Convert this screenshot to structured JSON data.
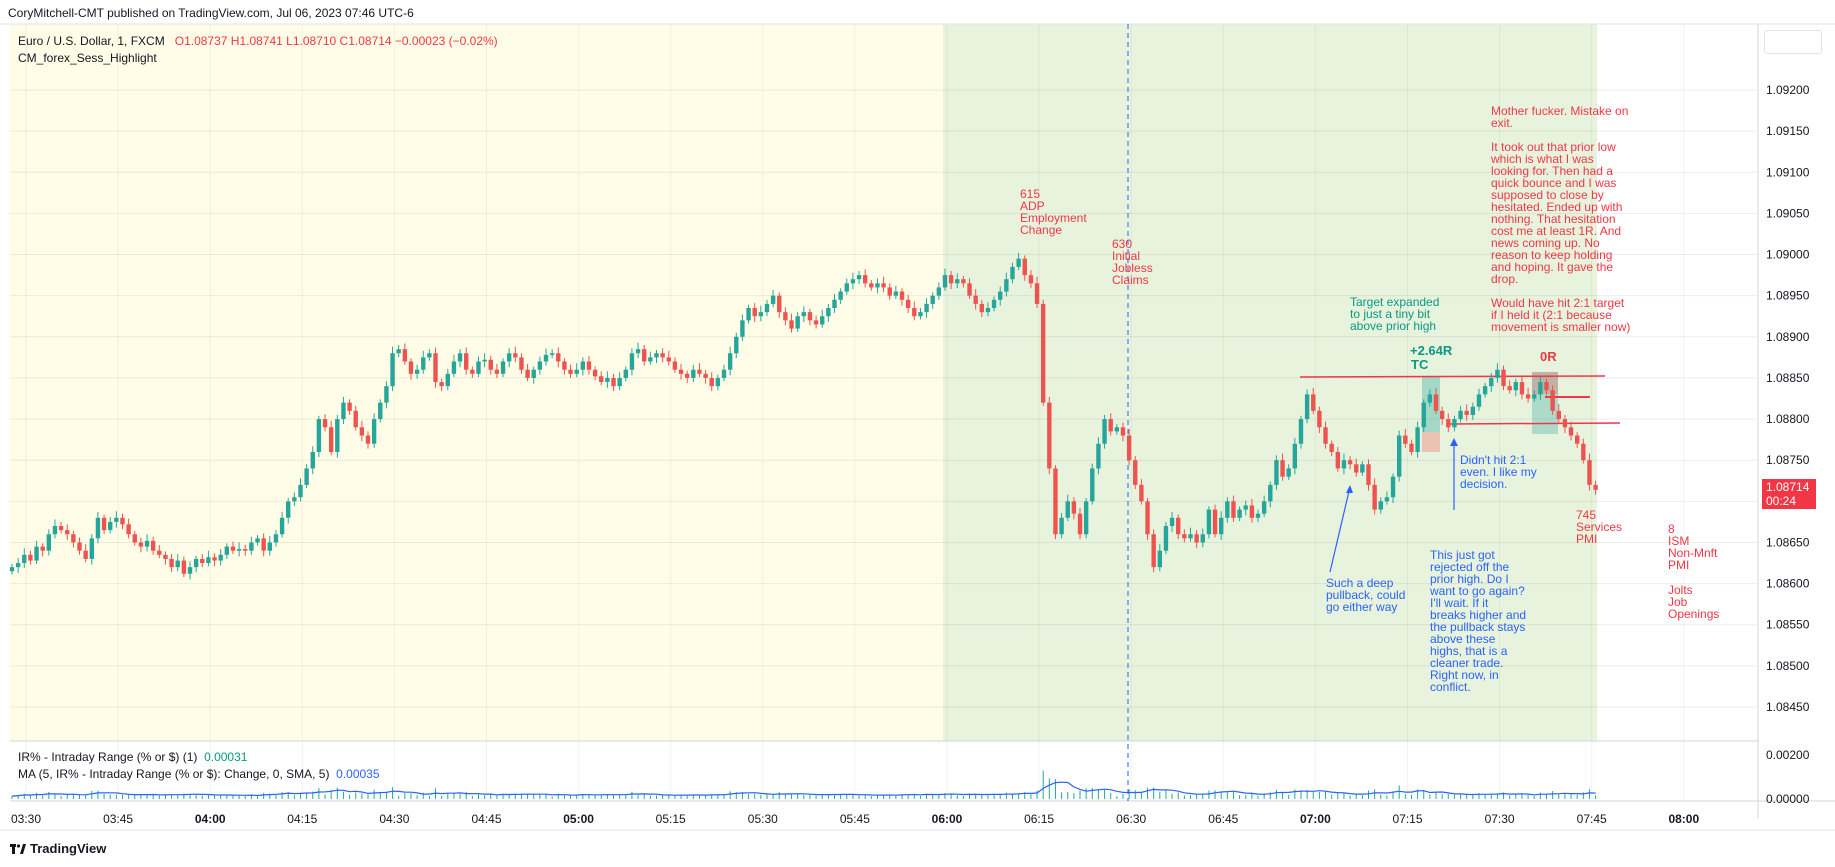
{
  "header": {
    "publisher": "CoryMitchell-CMT published on TradingView.com, Jul 06, 2023 07:46 UTC-6"
  },
  "legend": {
    "symbol": "Euro / U.S. Dollar, 1, FXCM",
    "ohlc": "O1.08737  H1.08741  L1.08710  C1.08714  −0.00023 (−0.02%)",
    "indicator": "CM_forex_Sess_Highlight"
  },
  "indicators": {
    "ir_label": "IR% - Intraday Range (% or $) (1)",
    "ir_value": "0.00031",
    "ma_label": "MA (5, IR% - Intraday Range (% or $): Change, 0, SMA, 5)",
    "ma_value": "0.00035"
  },
  "last_price": {
    "value": "1.08714",
    "countdown": "00:24"
  },
  "footer": {
    "brand": "TradingView"
  },
  "colors": {
    "up": "#26a69a",
    "down": "#ef5350",
    "session_asia": "#fffde7",
    "session_ny": "#e8f3de",
    "note_red": "#f23645",
    "note_green": "#089981",
    "note_blue": "#2962ff"
  },
  "chart_data": {
    "type": "candlestick",
    "symbol": "EURUSD",
    "timeframe": "1",
    "x_ticks": [
      {
        "label": "03:30",
        "bold": false
      },
      {
        "label": "03:45",
        "bold": false
      },
      {
        "label": "04:00",
        "bold": true
      },
      {
        "label": "04:15",
        "bold": false
      },
      {
        "label": "04:30",
        "bold": false
      },
      {
        "label": "04:45",
        "bold": false
      },
      {
        "label": "05:00",
        "bold": true
      },
      {
        "label": "05:15",
        "bold": false
      },
      {
        "label": "05:30",
        "bold": false
      },
      {
        "label": "05:45",
        "bold": false
      },
      {
        "label": "06:00",
        "bold": true
      },
      {
        "label": "06:15",
        "bold": false
      },
      {
        "label": "06:30",
        "bold": false
      },
      {
        "label": "06:45",
        "bold": false
      },
      {
        "label": "07:00",
        "bold": true
      },
      {
        "label": "07:15",
        "bold": false
      },
      {
        "label": "07:30",
        "bold": false
      },
      {
        "label": "07:45",
        "bold": false
      },
      {
        "label": "08:00",
        "bold": true
      }
    ],
    "y_ticks": [
      "1.09200",
      "1.09150",
      "1.09100",
      "1.09050",
      "1.09000",
      "1.08950",
      "1.08900",
      "1.08850",
      "1.08800",
      "1.08750",
      "1.08700",
      "1.08650",
      "1.08600",
      "1.08550",
      "1.08500",
      "1.08450"
    ],
    "indicator_y_ticks": [
      "0.00200",
      "0.00000"
    ],
    "ylim": [
      1.0842,
      1.093
    ],
    "closes": [
      1.0862,
      1.08625,
      1.08635,
      1.08628,
      1.08645,
      1.0864,
      1.0866,
      1.0867,
      1.08665,
      1.0866,
      1.0865,
      1.0864,
      1.0863,
      1.08655,
      1.0868,
      1.08665,
      1.08675,
      1.0868,
      1.08672,
      1.0866,
      1.0865,
      1.08645,
      1.08652,
      1.0864,
      1.08635,
      1.0863,
      1.0862,
      1.08628,
      1.08612,
      1.0862,
      1.0863,
      1.08625,
      1.08632,
      1.08628,
      1.08635,
      1.08645,
      1.0864,
      1.08642,
      1.0864,
      1.0865,
      1.08655,
      1.0864,
      1.0865,
      1.0866,
      1.0868,
      1.087,
      1.08705,
      1.0872,
      1.0874,
      1.0876,
      1.088,
      1.0879,
      1.0876,
      1.088,
      1.0882,
      1.0881,
      1.0879,
      1.0878,
      1.0877,
      1.088,
      1.0882,
      1.0884,
      1.0888,
      1.08885,
      1.0887,
      1.08855,
      1.0886,
      1.08875,
      1.0888,
      1.08845,
      1.0884,
      1.08855,
      1.0887,
      1.0888,
      1.0886,
      1.08855,
      1.0887,
      1.08872,
      1.0886,
      1.08855,
      1.0887,
      1.0888,
      1.08875,
      1.0886,
      1.0885,
      1.0886,
      1.0887,
      1.08878,
      1.0888,
      1.0887,
      1.0886,
      1.08855,
      1.0886,
      1.0887,
      1.0886,
      1.08852,
      1.08845,
      1.0885,
      1.0884,
      1.0885,
      1.0886,
      1.0888,
      1.08885,
      1.0887,
      1.08875,
      1.0888,
      1.08875,
      1.0887,
      1.0886,
      1.08855,
      1.0885,
      1.0886,
      1.08855,
      1.0885,
      1.0884,
      1.0885,
      1.0886,
      1.0888,
      1.089,
      1.0892,
      1.08935,
      1.08925,
      1.0893,
      1.0894,
      1.0895,
      1.0893,
      1.0892,
      1.0891,
      1.08925,
      1.0893,
      1.0892,
      1.08915,
      1.08925,
      1.08935,
      1.08945,
      1.08955,
      1.08965,
      1.0897,
      1.08975,
      1.08965,
      1.0896,
      1.08965,
      1.0896,
      1.0895,
      1.08955,
      1.08945,
      1.08935,
      1.08925,
      1.0893,
      1.0894,
      1.0895,
      1.0896,
      1.08975,
      1.08965,
      1.0897,
      1.08965,
      1.0895,
      1.0894,
      1.0893,
      1.08935,
      1.08945,
      1.08955,
      1.0897,
      1.08985,
      1.08995,
      1.08975,
      1.08965,
      1.0894,
      1.0882,
      1.0874,
      1.0866,
      1.0868,
      1.087,
      1.08685,
      1.0866,
      1.087,
      1.0874,
      1.0877,
      1.088,
      1.08785,
      1.0879,
      1.0878,
      1.0875,
      1.0872,
      1.087,
      1.0866,
      1.0862,
      1.0864,
      1.0867,
      1.0868,
      1.0866,
      1.08655,
      1.0866,
      1.0865,
      1.0866,
      1.0869,
      1.0866,
      1.0868,
      1.087,
      1.0868,
      1.0869,
      1.08695,
      1.0868,
      1.08685,
      1.087,
      1.0872,
      1.0875,
      1.0873,
      1.0874,
      1.0877,
      1.088,
      1.0883,
      1.0881,
      1.0879,
      1.0877,
      1.0876,
      1.0874,
      1.0875,
      1.08745,
      1.08735,
      1.08745,
      1.0872,
      1.0869,
      1.087,
      1.08705,
      1.0873,
      1.0878,
      1.0877,
      1.0876,
      1.0879,
      1.0882,
      1.0883,
      1.0881,
      1.088,
      1.0879,
      1.088,
      1.0881,
      1.08805,
      1.08815,
      1.0883,
      1.0884,
      1.0885,
      1.0886,
      1.0884,
      1.08835,
      1.08845,
      1.0883,
      1.08825,
      1.0883,
      1.08845,
      1.08835,
      1.0881,
      1.088,
      1.0879,
      1.0878,
      1.0877,
      1.0875,
      1.0872,
      1.08714
    ]
  },
  "annotations": {
    "adp": "615\nADP\nEmployment\nChange",
    "jobless": "630\nInitial\nJobless\nClaims",
    "target": "Target expanded\nto just a tiny bit\nabove prior high",
    "r264": "+2.64R",
    "tc": "TC",
    "zero_r": "0R",
    "mistake": "Mother fucker. Mistake on\nexit.\n\nIt took out that prior low\nwhich is what I was\nlooking for. Then had a\nquick bounce and I was\nsupposed to close by\nhesitated. Ended up with\nnothing. That hesitation\ncost me at least 1R. And\nnews coming up. No\nreason to keep holding\nand hoping. It gave the\ndrop.\n\nWould have hit 2:1 target\nif I held it (2:1 because\nmovement is smaller now)",
    "didnt_hit": "Didn't hit 2:1\neven. I like my\ndecision.",
    "pullback": "Such a deep\npullback, could\ngo either way",
    "rejected": "This just got\nrejected off the\nprior high. Do I\nwant to go again?\nI'll wait. If it\nbreaks higher and\nthe pullback stays\nabove these\nhighs, that is a\ncleaner trade.\nRight now, in\nconflict.",
    "services": "745\nServices\nPMI",
    "ism": "8\nISM\nNon-Mnft\nPMI",
    "jolts": "Jolts\nJob\nOpenings"
  }
}
